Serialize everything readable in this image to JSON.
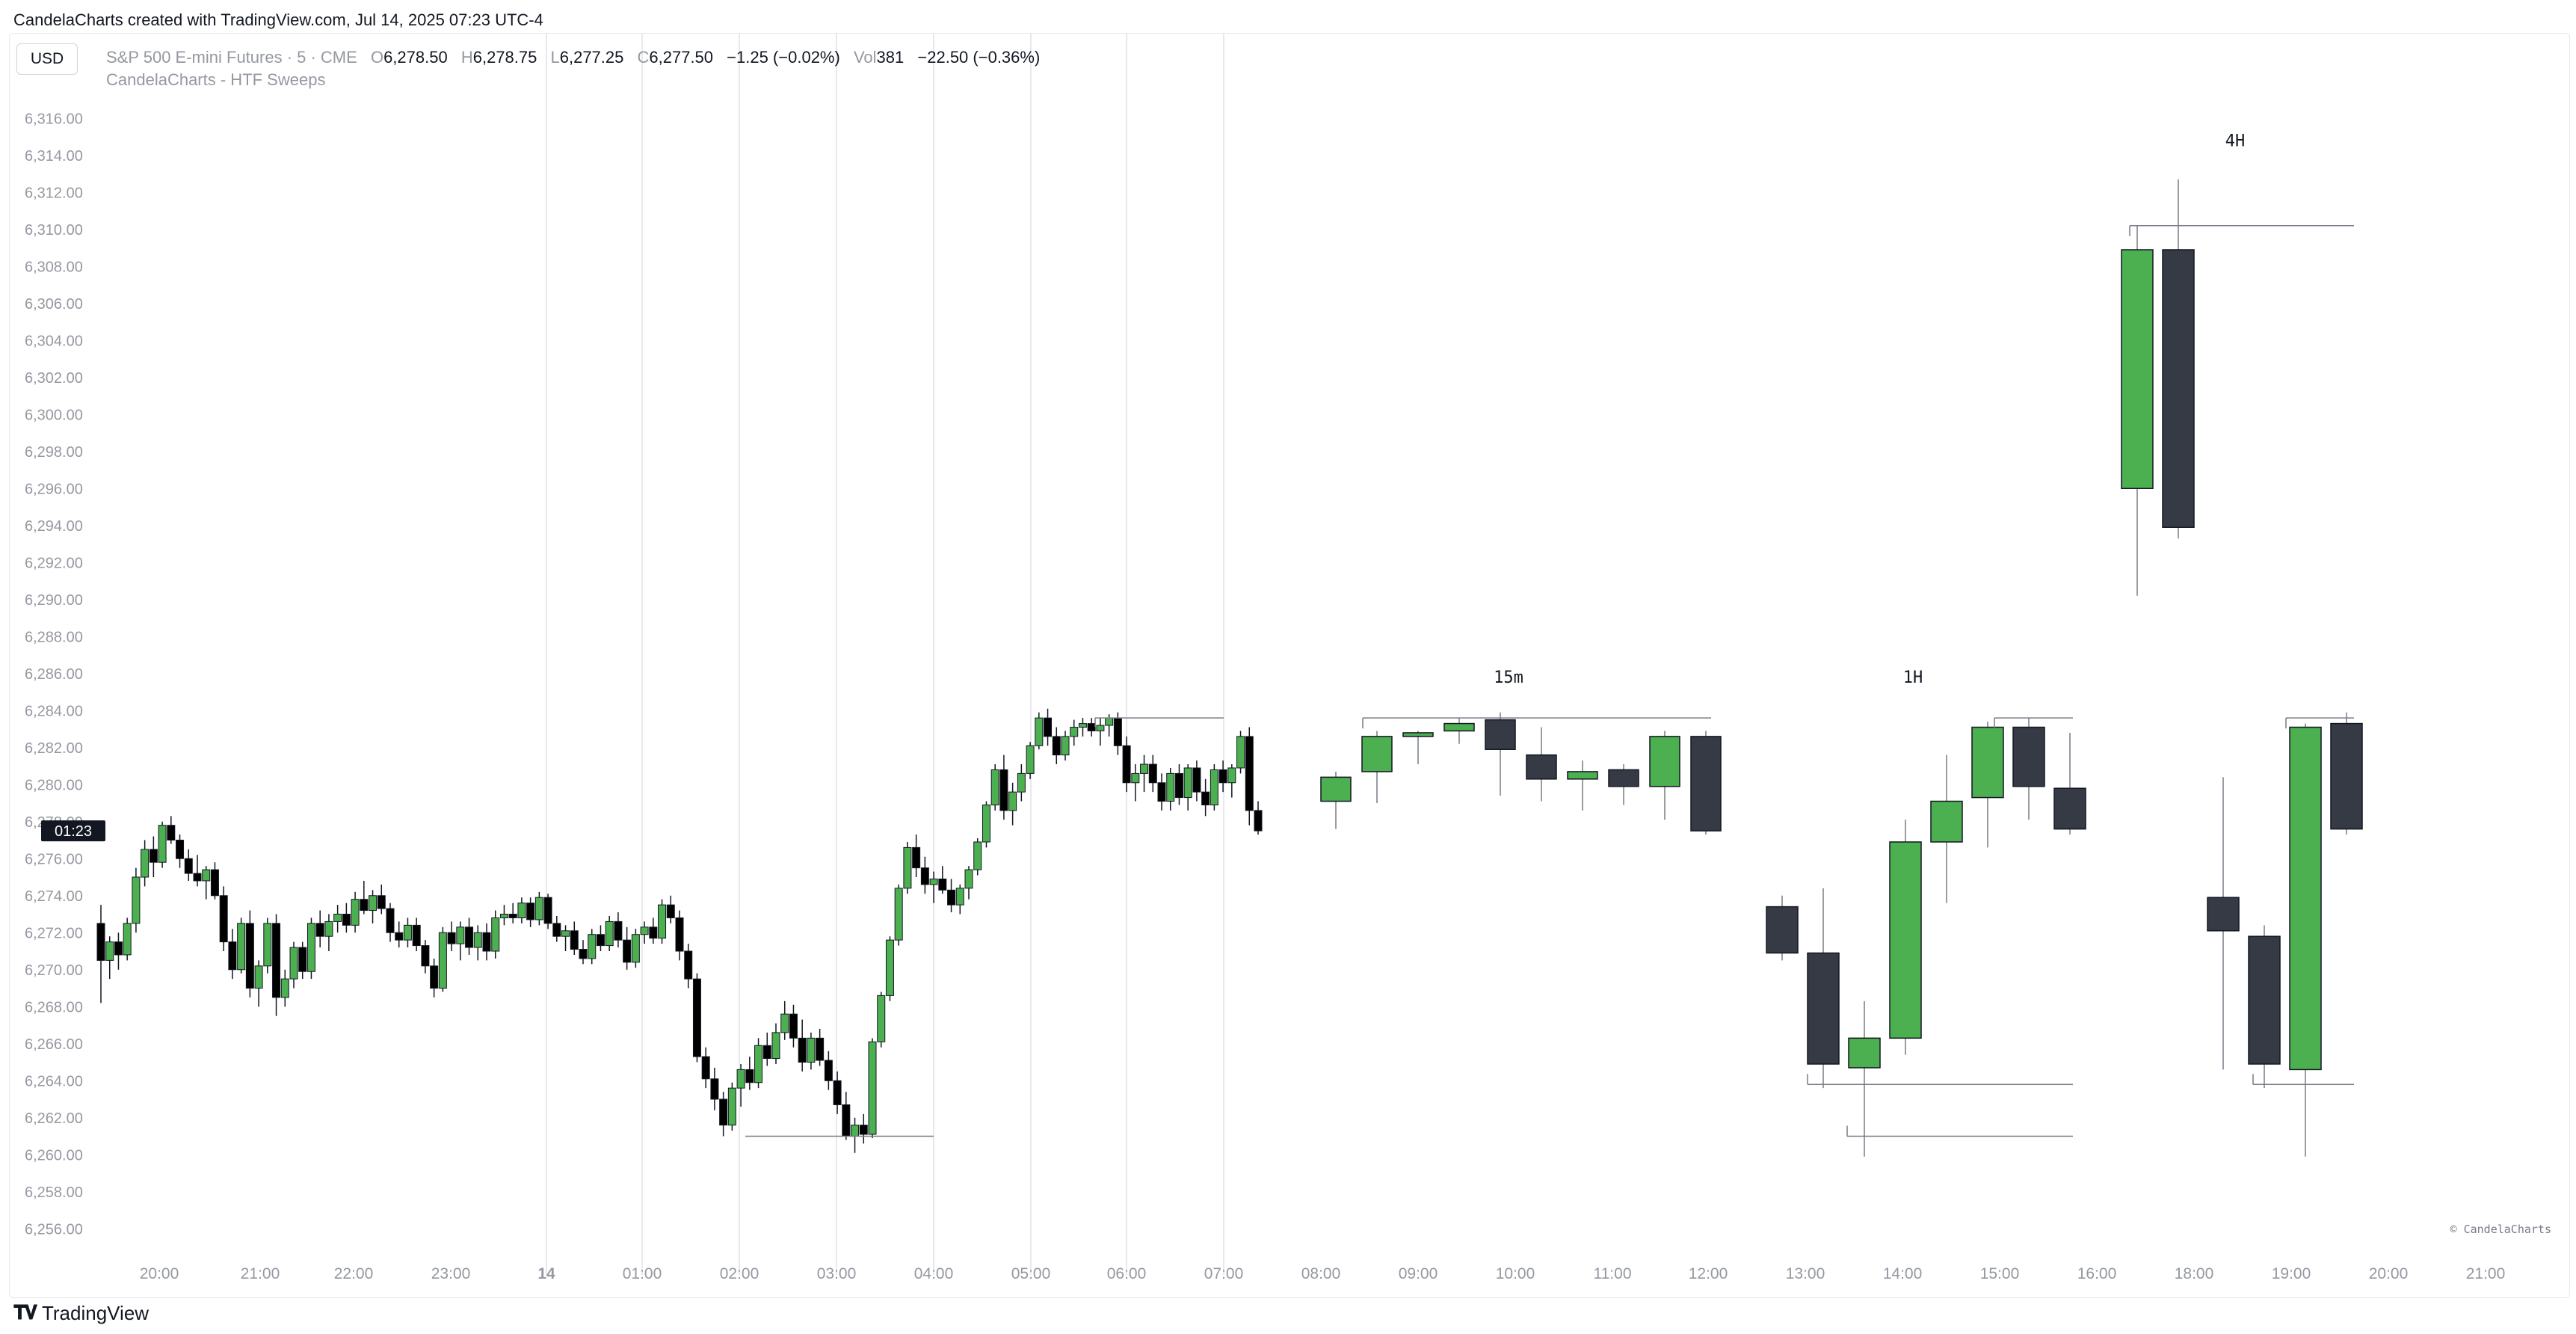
{
  "caption": "CandelaCharts created with TradingView.com, Jul 14, 2025 07:23 UTC-4",
  "currency_button": "USD",
  "legend": {
    "symbol": "S&P 500 E-mini Futures · 5 · CME",
    "open_label": "O",
    "open": "6,278.50",
    "high_label": "H",
    "high": "6,278.75",
    "low_label": "L",
    "low": "6,277.25",
    "close_label": "C",
    "close": "6,277.50",
    "change": "−1.25 (−0.02%)",
    "vol_label": "Vol",
    "volume": "381",
    "vol_change": "−22.50 (−0.36%)"
  },
  "indicator_name": "CandelaCharts - HTF Sweeps",
  "countdown": "01:23",
  "watermark": "© CandelaCharts",
  "footer_brand": "TradingView",
  "colors": {
    "bull_ltf": "#4caf50",
    "bear_ltf": "#000000",
    "bull_htf": "#4caf50",
    "bear_htf": "#363a45",
    "grid": "#e8e9ec",
    "sweep_line": "#787b86",
    "axis_text": "#9598a1"
  },
  "chart_data": {
    "type": "candlestick",
    "ylim": [
      6255,
      6317
    ],
    "y_ticks": [
      "6,256.00",
      "6,258.00",
      "6,260.00",
      "6,262.00",
      "6,264.00",
      "6,266.00",
      "6,268.00",
      "6,270.00",
      "6,272.00",
      "6,274.00",
      "6,276.00",
      "6,278.00",
      "6,280.00",
      "6,282.00",
      "6,284.00",
      "6,286.00",
      "6,288.00",
      "6,290.00",
      "6,292.00",
      "6,294.00",
      "6,296.00",
      "6,298.00",
      "6,300.00",
      "6,302.00",
      "6,304.00",
      "6,306.00",
      "6,308.00",
      "6,310.00",
      "6,312.00",
      "6,314.00",
      "6,316.00"
    ],
    "x_ticks": [
      "20:00",
      "21:00",
      "22:00",
      "23:00",
      "14",
      "01:00",
      "02:00",
      "03:00",
      "04:00",
      "05:00",
      "06:00",
      "07:00",
      "08:00",
      "09:00",
      "10:00",
      "11:00",
      "12:00",
      "13:00",
      "14:00",
      "15:00",
      "16:00",
      "18:00",
      "19:00",
      "20:00",
      "21:00"
    ],
    "ltf_candles": [
      [
        6272.5,
        6273.5,
        6268.2,
        6270.5
      ],
      [
        6270.5,
        6271.8,
        6269.5,
        6271.5
      ],
      [
        6271.5,
        6272.0,
        6270.0,
        6270.8
      ],
      [
        6270.8,
        6272.8,
        6270.5,
        6272.5
      ],
      [
        6272.5,
        6275.5,
        6272.0,
        6275.0
      ],
      [
        6275.0,
        6277.0,
        6274.5,
        6276.5
      ],
      [
        6276.5,
        6277.2,
        6275.0,
        6275.8
      ],
      [
        6275.8,
        6278.0,
        6275.5,
        6277.8
      ],
      [
        6277.8,
        6278.3,
        6276.8,
        6277.0
      ],
      [
        6277.0,
        6277.3,
        6275.5,
        6276.0
      ],
      [
        6276.0,
        6276.5,
        6274.8,
        6275.2
      ],
      [
        6275.2,
        6276.2,
        6274.5,
        6274.8
      ],
      [
        6274.8,
        6275.6,
        6273.8,
        6275.4
      ],
      [
        6275.4,
        6275.8,
        6273.8,
        6274.0
      ],
      [
        6274.0,
        6274.5,
        6271.0,
        6271.5
      ],
      [
        6271.5,
        6272.2,
        6269.5,
        6270.0
      ],
      [
        6270.0,
        6272.8,
        6269.8,
        6272.5
      ],
      [
        6272.5,
        6273.2,
        6268.5,
        6269.0
      ],
      [
        6269.0,
        6270.5,
        6268.0,
        6270.2
      ],
      [
        6270.2,
        6272.8,
        6269.8,
        6272.5
      ],
      [
        6272.5,
        6273.0,
        6267.5,
        6268.5
      ],
      [
        6268.5,
        6270.0,
        6268.0,
        6269.5
      ],
      [
        6269.5,
        6271.5,
        6269.0,
        6271.2
      ],
      [
        6271.2,
        6271.5,
        6269.5,
        6269.9
      ],
      [
        6269.9,
        6272.8,
        6269.5,
        6272.5
      ],
      [
        6272.5,
        6273.2,
        6271.2,
        6271.8
      ],
      [
        6271.8,
        6273.0,
        6271.0,
        6272.6
      ],
      [
        6272.6,
        6273.5,
        6272.0,
        6273.0
      ],
      [
        6273.0,
        6273.6,
        6272.0,
        6272.4
      ],
      [
        6272.4,
        6274.2,
        6272.0,
        6273.8
      ],
      [
        6273.8,
        6274.8,
        6273.0,
        6273.2
      ],
      [
        6273.2,
        6274.3,
        6272.5,
        6274.0
      ],
      [
        6274.0,
        6274.6,
        6273.0,
        6273.3
      ],
      [
        6273.3,
        6273.6,
        6271.5,
        6272.0
      ],
      [
        6272.0,
        6272.6,
        6271.2,
        6271.6
      ],
      [
        6271.6,
        6272.8,
        6271.2,
        6272.4
      ],
      [
        6272.4,
        6272.8,
        6271.0,
        6271.3
      ],
      [
        6271.3,
        6271.6,
        6269.8,
        6270.2
      ],
      [
        6270.2,
        6270.6,
        6268.5,
        6269.0
      ],
      [
        6269.0,
        6272.3,
        6268.8,
        6272.0
      ],
      [
        6272.0,
        6272.6,
        6271.0,
        6271.4
      ],
      [
        6271.4,
        6272.6,
        6270.5,
        6272.3
      ],
      [
        6272.3,
        6272.8,
        6270.8,
        6271.2
      ],
      [
        6271.2,
        6272.4,
        6270.5,
        6272.0
      ],
      [
        6272.0,
        6272.5,
        6270.5,
        6271.0
      ],
      [
        6271.0,
        6273.2,
        6270.6,
        6272.8
      ],
      [
        6272.8,
        6273.5,
        6272.4,
        6273.0
      ],
      [
        6273.0,
        6273.6,
        6272.5,
        6272.8
      ],
      [
        6272.8,
        6273.9,
        6272.5,
        6273.6
      ],
      [
        6273.6,
        6273.9,
        6272.3,
        6272.7
      ],
      [
        6272.7,
        6274.2,
        6272.4,
        6273.9
      ],
      [
        6273.9,
        6274.1,
        6272.2,
        6272.5
      ],
      [
        6272.5,
        6272.9,
        6271.5,
        6271.8
      ],
      [
        6271.8,
        6272.4,
        6271.0,
        6272.1
      ],
      [
        6272.1,
        6272.6,
        6270.8,
        6271.1
      ],
      [
        6271.1,
        6271.6,
        6270.3,
        6270.6
      ],
      [
        6270.6,
        6272.2,
        6270.3,
        6271.9
      ],
      [
        6271.9,
        6272.4,
        6271.0,
        6271.3
      ],
      [
        6271.3,
        6272.9,
        6271.0,
        6272.6
      ],
      [
        6272.6,
        6273.1,
        6271.2,
        6271.6
      ],
      [
        6271.6,
        6272.3,
        6270.0,
        6270.4
      ],
      [
        6270.4,
        6272.2,
        6270.1,
        6271.9
      ],
      [
        6271.9,
        6272.6,
        6271.4,
        6272.3
      ],
      [
        6272.3,
        6272.8,
        6271.4,
        6271.7
      ],
      [
        6271.7,
        6273.8,
        6271.4,
        6273.5
      ],
      [
        6273.5,
        6274.0,
        6272.5,
        6272.8
      ],
      [
        6272.8,
        6273.2,
        6270.5,
        6271.0
      ],
      [
        6271.0,
        6271.4,
        6269.0,
        6269.5
      ],
      [
        6269.5,
        6269.8,
        6265.0,
        6265.3
      ],
      [
        6265.3,
        6265.8,
        6263.6,
        6264.1
      ],
      [
        6264.1,
        6264.7,
        6262.4,
        6263.0
      ],
      [
        6263.0,
        6263.4,
        6261.0,
        6261.6
      ],
      [
        6261.6,
        6263.9,
        6261.3,
        6263.6
      ],
      [
        6263.6,
        6264.9,
        6262.6,
        6264.6
      ],
      [
        6264.6,
        6265.3,
        6263.5,
        6263.9
      ],
      [
        6263.9,
        6266.3,
        6263.6,
        6265.9
      ],
      [
        6265.9,
        6266.6,
        6264.8,
        6265.2
      ],
      [
        6265.2,
        6267.1,
        6264.9,
        6266.6
      ],
      [
        6266.6,
        6268.3,
        6266.2,
        6267.6
      ],
      [
        6267.6,
        6268.1,
        6265.8,
        6266.3
      ],
      [
        6266.3,
        6267.3,
        6264.5,
        6265.0
      ],
      [
        6265.0,
        6266.6,
        6264.6,
        6266.3
      ],
      [
        6266.3,
        6266.8,
        6264.8,
        6265.1
      ],
      [
        6265.1,
        6265.6,
        6263.5,
        6264.0
      ],
      [
        6264.0,
        6264.5,
        6262.2,
        6262.7
      ],
      [
        6262.7,
        6263.4,
        6260.8,
        6261.0
      ],
      [
        6261.0,
        6262.0,
        6260.1,
        6261.6
      ],
      [
        6261.6,
        6262.2,
        6260.6,
        6261.1
      ],
      [
        6261.1,
        6266.3,
        6260.9,
        6266.1
      ],
      [
        6266.1,
        6268.8,
        6265.8,
        6268.6
      ],
      [
        6268.6,
        6271.8,
        6268.3,
        6271.6
      ],
      [
        6271.6,
        6274.6,
        6271.3,
        6274.4
      ],
      [
        6274.4,
        6276.9,
        6274.1,
        6276.6
      ],
      [
        6276.6,
        6277.3,
        6275.0,
        6275.5
      ],
      [
        6275.5,
        6276.1,
        6274.1,
        6274.6
      ],
      [
        6274.6,
        6275.3,
        6273.6,
        6274.9
      ],
      [
        6274.9,
        6275.6,
        6274.1,
        6274.3
      ],
      [
        6274.3,
        6274.9,
        6273.1,
        6273.5
      ],
      [
        6273.5,
        6274.6,
        6273.0,
        6274.4
      ],
      [
        6274.4,
        6275.6,
        6273.8,
        6275.4
      ],
      [
        6275.4,
        6277.1,
        6275.1,
        6276.9
      ],
      [
        6276.9,
        6279.1,
        6276.6,
        6278.9
      ],
      [
        6278.9,
        6281.1,
        6278.6,
        6280.8
      ],
      [
        6280.8,
        6281.6,
        6278.1,
        6278.6
      ],
      [
        6278.6,
        6280.1,
        6277.8,
        6279.6
      ],
      [
        6279.6,
        6281.1,
        6279.1,
        6280.6
      ],
      [
        6280.6,
        6282.3,
        6280.3,
        6282.1
      ],
      [
        6282.1,
        6283.9,
        6281.9,
        6283.6
      ],
      [
        6283.6,
        6284.1,
        6282.1,
        6282.6
      ],
      [
        6282.6,
        6283.1,
        6281.1,
        6281.6
      ],
      [
        6281.6,
        6282.9,
        6281.3,
        6282.6
      ],
      [
        6282.6,
        6283.5,
        6282.1,
        6283.1
      ],
      [
        6283.1,
        6283.6,
        6282.6,
        6283.3
      ],
      [
        6283.3,
        6283.6,
        6282.6,
        6282.9
      ],
      [
        6282.9,
        6283.6,
        6282.1,
        6283.2
      ],
      [
        6283.2,
        6283.8,
        6282.6,
        6283.6
      ],
      [
        6283.6,
        6283.9,
        6281.6,
        6282.1
      ],
      [
        6282.1,
        6282.6,
        6279.6,
        6280.1
      ],
      [
        6280.1,
        6281.1,
        6279.1,
        6280.6
      ],
      [
        6280.6,
        6281.6,
        6279.6,
        6281.1
      ],
      [
        6281.1,
        6281.6,
        6279.6,
        6280.1
      ],
      [
        6280.1,
        6280.6,
        6278.6,
        6279.1
      ],
      [
        6279.1,
        6280.9,
        6278.6,
        6280.6
      ],
      [
        6280.6,
        6281.1,
        6278.9,
        6279.3
      ],
      [
        6279.3,
        6281.1,
        6278.6,
        6280.9
      ],
      [
        6280.9,
        6281.3,
        6279.1,
        6279.6
      ],
      [
        6279.6,
        6280.3,
        6278.3,
        6278.9
      ],
      [
        6278.9,
        6281.1,
        6278.6,
        6280.8
      ],
      [
        6280.8,
        6281.3,
        6279.6,
        6280.1
      ],
      [
        6280.1,
        6281.1,
        6279.3,
        6280.9
      ],
      [
        6280.9,
        6282.9,
        6280.6,
        6282.6
      ],
      [
        6282.6,
        6283.1,
        6277.8,
        6278.6
      ],
      [
        6278.6,
        6279.1,
        6277.3,
        6277.5
      ]
    ],
    "htf_groups": [
      {
        "label": "15m",
        "candles": [
          [
            6279.1,
            6280.7,
            6277.6,
            6280.4
          ],
          [
            6280.7,
            6282.9,
            6279.0,
            6282.6
          ],
          [
            6282.6,
            6282.9,
            6281.1,
            6282.8
          ],
          [
            6282.9,
            6283.6,
            6282.2,
            6283.3
          ],
          [
            6283.5,
            6283.9,
            6279.4,
            6281.9
          ],
          [
            6281.6,
            6283.1,
            6279.1,
            6280.3
          ],
          [
            6280.3,
            6281.3,
            6278.6,
            6280.7
          ],
          [
            6280.8,
            6281.1,
            6278.9,
            6279.9
          ],
          [
            6279.9,
            6282.9,
            6278.1,
            6282.6
          ],
          [
            6282.6,
            6282.9,
            6277.3,
            6277.5
          ]
        ]
      },
      {
        "label": "1H",
        "candles": [
          [
            6273.4,
            6274.0,
            6270.5,
            6270.9
          ],
          [
            6270.9,
            6274.4,
            6263.6,
            6264.9
          ],
          [
            6264.7,
            6268.3,
            6259.9,
            6266.3
          ],
          [
            6266.3,
            6278.1,
            6265.4,
            6276.9
          ],
          [
            6276.9,
            6281.6,
            6273.6,
            6279.1
          ],
          [
            6279.3,
            6283.4,
            6276.6,
            6283.1
          ],
          [
            6283.1,
            6283.6,
            6278.1,
            6279.9
          ],
          [
            6279.8,
            6282.8,
            6277.3,
            6277.6
          ]
        ]
      },
      {
        "label": "4H",
        "candles": [
          [
            6296.0,
            6310.2,
            6290.2,
            6308.9
          ],
          [
            6308.9,
            6312.7,
            6293.3,
            6293.9
          ]
        ]
      },
      {
        "label": "",
        "candles": [
          [
            6273.9,
            6280.4,
            6264.6,
            6272.1
          ],
          [
            6271.8,
            6272.4,
            6263.6,
            6264.9
          ],
          [
            6264.6,
            6283.3,
            6259.9,
            6283.1
          ],
          [
            6283.3,
            6283.9,
            6277.3,
            6277.6
          ]
        ]
      }
    ],
    "sweep_levels": [
      6283.6,
      6263.8,
      6261.0,
      6310.2
    ]
  }
}
